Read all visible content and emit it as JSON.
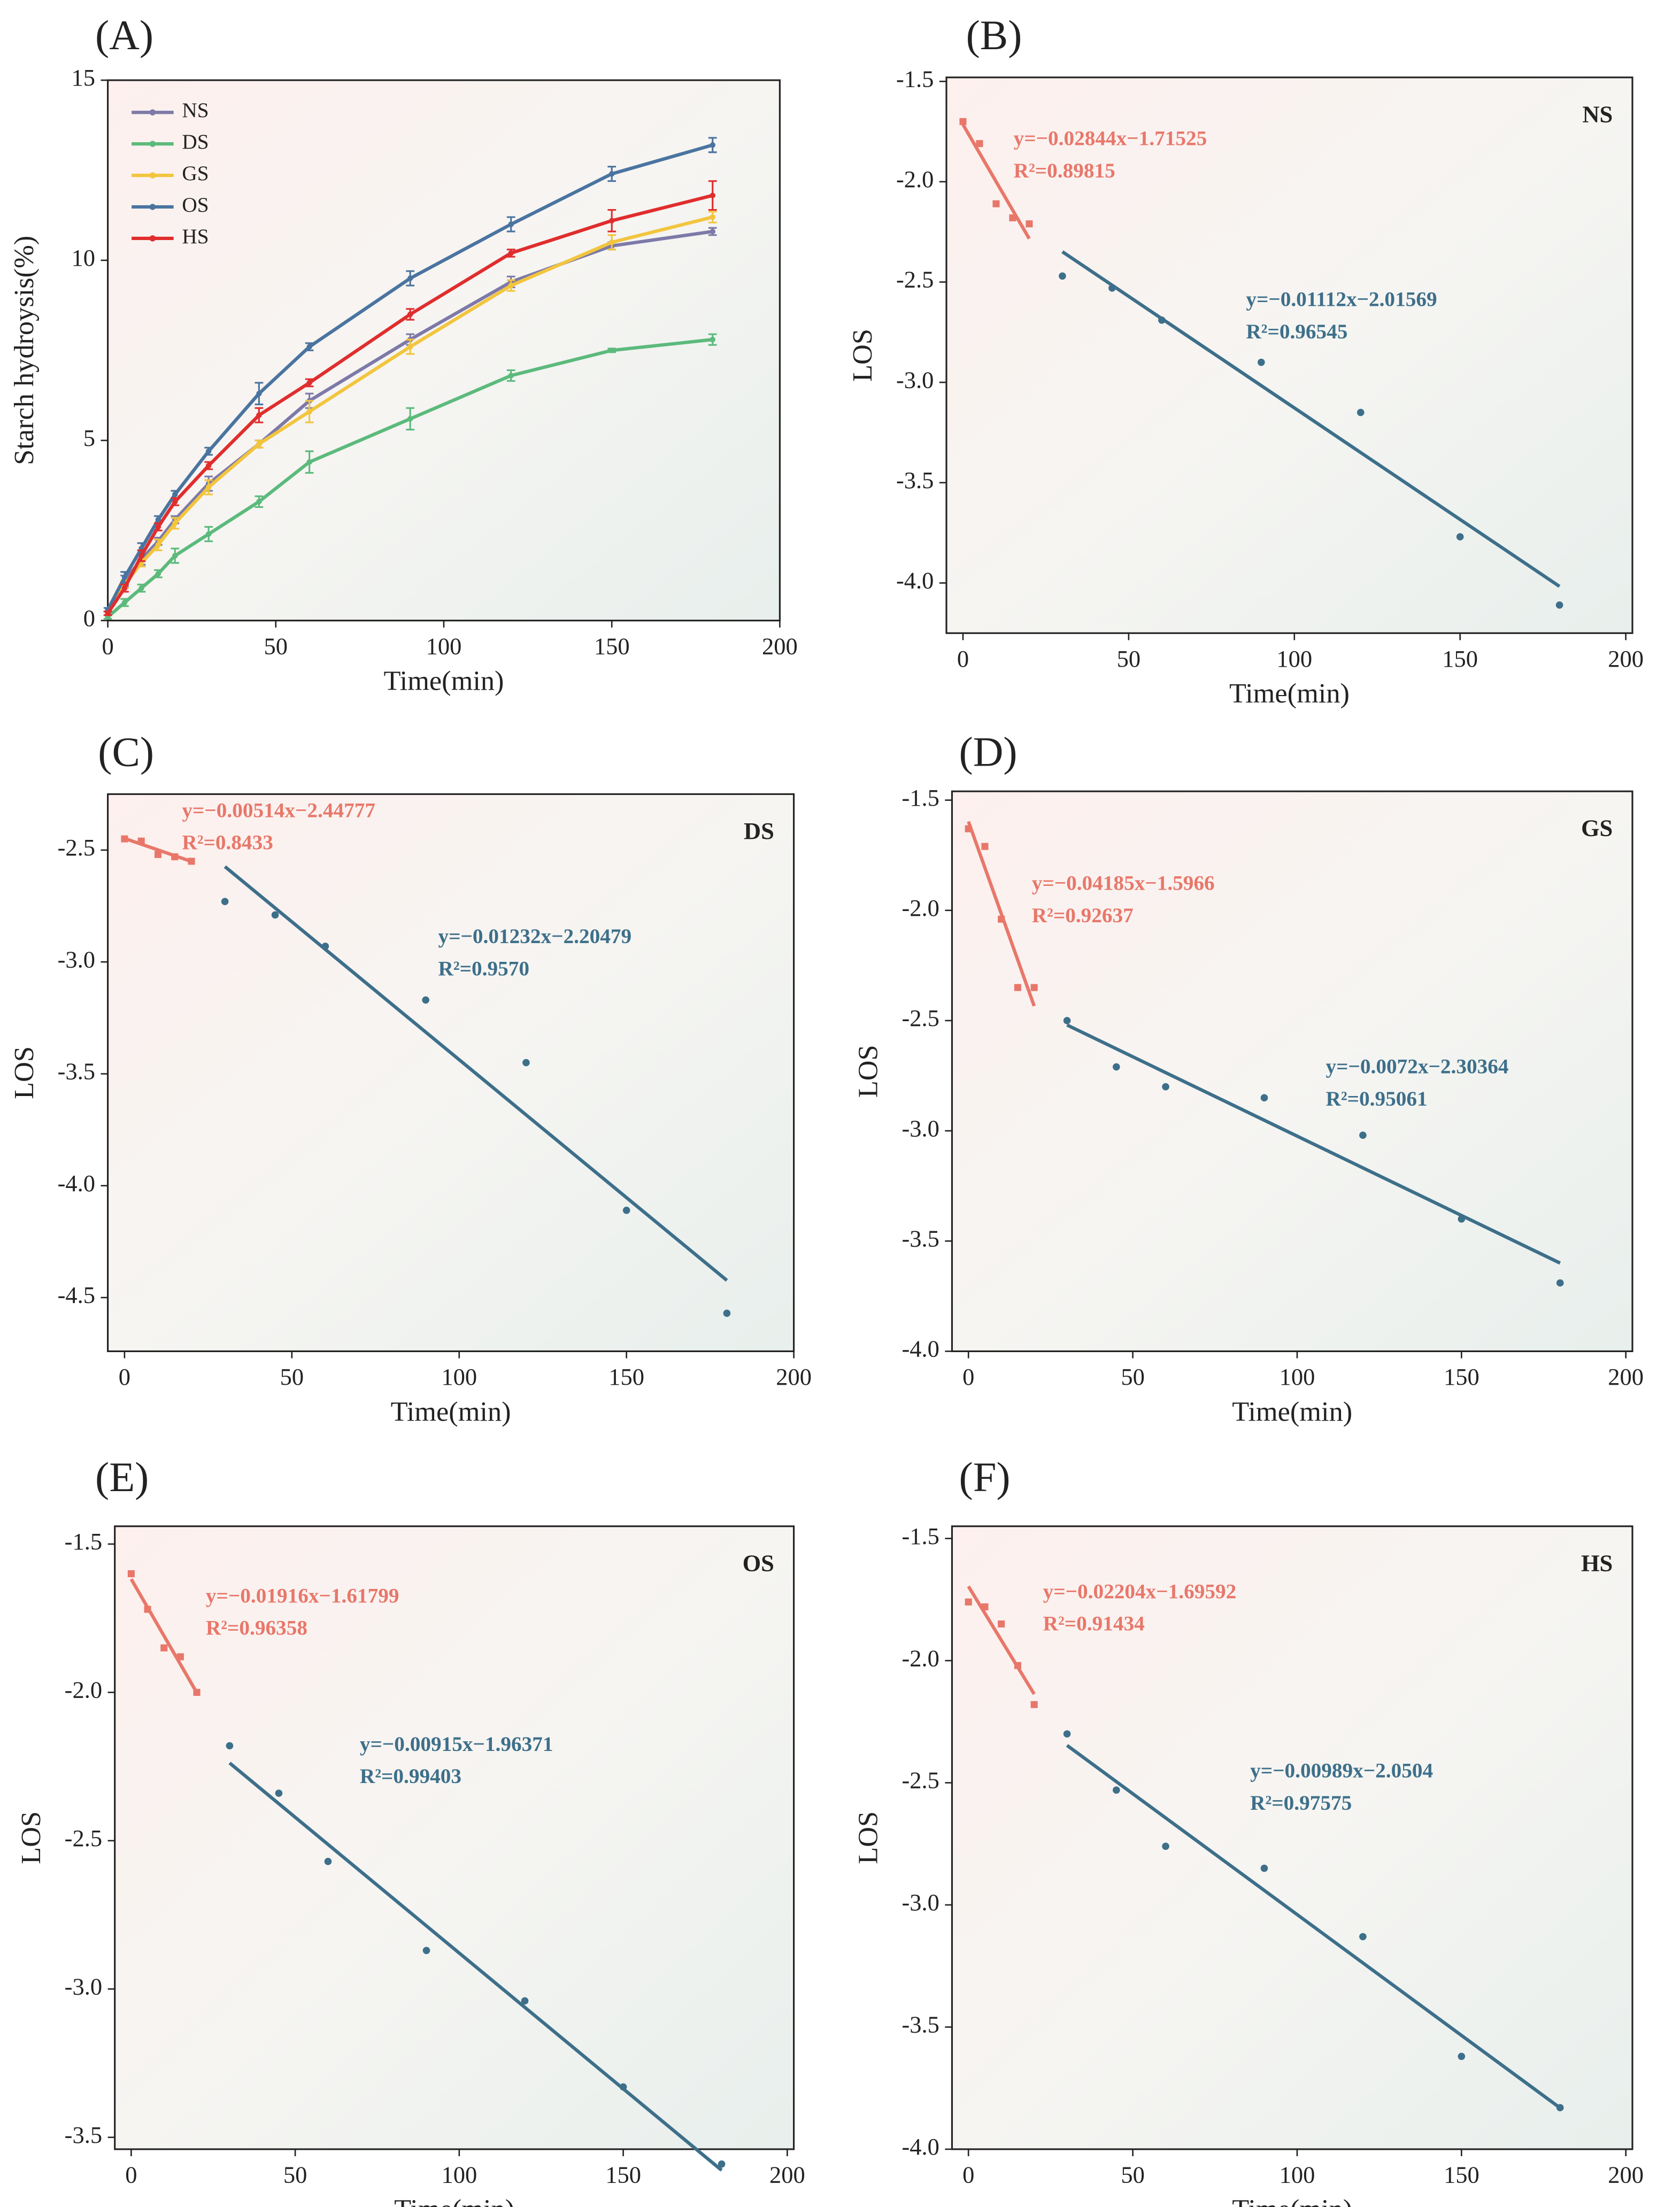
{
  "chart_data": [
    {
      "type": "line",
      "panel_label": "(A)",
      "xlabel": "Time(min)",
      "ylabel": "Starch hydroysis(%)",
      "x": [
        0,
        5,
        10,
        15,
        20,
        30,
        45,
        60,
        90,
        120,
        150,
        180
      ],
      "xlim": [
        0,
        200
      ],
      "xticks": [
        0,
        50,
        100,
        150,
        200
      ],
      "ylim": [
        0,
        15
      ],
      "yticks": [
        0,
        5,
        10,
        15
      ],
      "series": [
        {
          "name": "NS",
          "color": "#7d7aa8",
          "values": [
            0.2,
            1.1,
            1.7,
            2.2,
            2.8,
            3.8,
            4.9,
            6.1,
            7.8,
            9.4,
            10.4,
            10.8
          ],
          "errors": [
            0.05,
            0.15,
            0.15,
            0.1,
            0.1,
            0.2,
            0.1,
            0.2,
            0.15,
            0.15,
            0.1,
            0.1
          ]
        },
        {
          "name": "DS",
          "color": "#5cba7c",
          "values": [
            0.1,
            0.5,
            0.9,
            1.3,
            1.8,
            2.4,
            3.3,
            4.4,
            5.6,
            6.8,
            7.5,
            7.8
          ],
          "errors": [
            0.05,
            0.1,
            0.1,
            0.1,
            0.2,
            0.2,
            0.15,
            0.3,
            0.3,
            0.15,
            0.05,
            0.15
          ]
        },
        {
          "name": "GS",
          "color": "#f2c53d",
          "values": [
            0.2,
            1.0,
            1.6,
            2.1,
            2.7,
            3.7,
            4.9,
            5.8,
            7.6,
            9.3,
            10.5,
            11.2
          ],
          "errors": [
            0.05,
            0.1,
            0.1,
            0.15,
            0.15,
            0.2,
            0.1,
            0.3,
            0.2,
            0.15,
            0.2,
            0.15
          ]
        },
        {
          "name": "OS",
          "color": "#4a74a0",
          "values": [
            0.3,
            1.2,
            2.0,
            2.8,
            3.5,
            4.7,
            6.3,
            7.6,
            9.5,
            11.0,
            12.4,
            13.2
          ],
          "errors": [
            0.05,
            0.15,
            0.15,
            0.1,
            0.1,
            0.1,
            0.3,
            0.1,
            0.2,
            0.2,
            0.2,
            0.2
          ]
        },
        {
          "name": "HS",
          "color": "#e02d2d",
          "values": [
            0.2,
            0.9,
            1.8,
            2.6,
            3.3,
            4.3,
            5.7,
            6.6,
            8.5,
            10.2,
            11.1,
            11.8
          ],
          "errors": [
            0.05,
            0.1,
            0.15,
            0.1,
            0.1,
            0.1,
            0.2,
            0.1,
            0.15,
            0.1,
            0.3,
            0.4
          ]
        }
      ]
    },
    {
      "type": "scatter",
      "panel_label": "(B)",
      "sample": "NS",
      "xlabel": "Time(min)",
      "ylabel": "LOS",
      "xlim": [
        -5,
        202
      ],
      "xticks": [
        0,
        50,
        100,
        150,
        200
      ],
      "ylim": [
        -4.25,
        -1.48
      ],
      "yticks": [
        -1.5,
        {
          "value": -2,
          "label": "-2.0"
        },
        -2.5,
        {
          "value": -3,
          "label": "-3.0"
        },
        -3.5,
        {
          "value": -4,
          "label": "-4.0"
        }
      ],
      "series": [
        {
          "color": "#e8776a",
          "x": [
            0,
            5,
            10,
            15,
            20
          ],
          "values": [
            -1.7,
            -1.81,
            -2.11,
            -2.18,
            -2.21
          ],
          "fit": {
            "x": [
              0,
              20
            ],
            "values": [
              -1.715,
              -2.284
            ]
          },
          "equation": "y=−0.02844x−1.71525",
          "r2": "R²=0.89815"
        },
        {
          "color": "#3d6f8a",
          "x": [
            30,
            45,
            60,
            90,
            120,
            150,
            180
          ],
          "values": [
            -2.47,
            -2.53,
            -2.69,
            -2.9,
            -3.15,
            -3.77,
            -4.11
          ],
          "fit": {
            "x": [
              30,
              180
            ],
            "values": [
              -2.349,
              -4.017
            ]
          },
          "equation": "y=−0.01112x−2.01569",
          "r2": "R²=0.96545"
        }
      ]
    },
    {
      "type": "scatter",
      "panel_label": "(C)",
      "sample": "DS",
      "xlabel": "Time(min)",
      "ylabel": "LOS",
      "xlim": [
        -5,
        200
      ],
      "xticks": [
        0,
        50,
        100,
        150,
        200
      ],
      "ylim": [
        -4.74,
        -2.25
      ],
      "yticks": [
        -2.5,
        {
          "value": -3,
          "label": "-3.0"
        },
        -3.5,
        {
          "value": -4,
          "label": "-4.0"
        },
        -4.5
      ],
      "series": [
        {
          "color": "#e8776a",
          "x": [
            0,
            5,
            10,
            15,
            20
          ],
          "values": [
            -2.45,
            -2.46,
            -2.52,
            -2.53,
            -2.55
          ],
          "fit": {
            "x": [
              0,
              20
            ],
            "values": [
              -2.448,
              -2.551
            ]
          },
          "equation": "y=−0.00514x−2.44777",
          "r2": "R²=0.8433"
        },
        {
          "color": "#3d6f8a",
          "x": [
            30,
            45,
            60,
            90,
            120,
            150,
            180
          ],
          "values": [
            -2.73,
            -2.79,
            -2.93,
            -3.17,
            -3.45,
            -4.11,
            -4.57
          ],
          "fit": {
            "x": [
              30,
              180
            ],
            "values": [
              -2.574,
              -4.423
            ]
          },
          "equation": "y=−0.01232x−2.20479",
          "r2": "R²=0.9570"
        }
      ]
    },
    {
      "type": "scatter",
      "panel_label": "(D)",
      "sample": "GS",
      "xlabel": "Time(min)",
      "ylabel": "LOS",
      "xlim": [
        -5,
        202
      ],
      "xticks": [
        0,
        50,
        100,
        150,
        200
      ],
      "ylim": [
        -4.0,
        -1.46
      ],
      "yticks": [
        -1.5,
        {
          "value": -2,
          "label": "-2.0"
        },
        -2.5,
        {
          "value": -3,
          "label": "-3.0"
        },
        -3.5,
        {
          "value": -4,
          "label": "-4.0"
        }
      ],
      "series": [
        {
          "color": "#e8776a",
          "x": [
            0,
            5,
            10,
            15,
            20
          ],
          "values": [
            -1.63,
            -1.71,
            -2.04,
            -2.35,
            -2.35
          ],
          "fit": {
            "x": [
              0,
              20
            ],
            "values": [
              -1.597,
              -2.434
            ]
          },
          "equation": "y=−0.04185x−1.5966",
          "r2": "R²=0.92637"
        },
        {
          "color": "#3d6f8a",
          "x": [
            30,
            45,
            60,
            90,
            120,
            150,
            180
          ],
          "values": [
            -2.5,
            -2.71,
            -2.8,
            -2.85,
            -3.02,
            -3.4,
            -3.69
          ],
          "fit": {
            "x": [
              30,
              180
            ],
            "values": [
              -2.52,
              -3.6
            ]
          },
          "equation": "y=−0.0072x−2.30364",
          "r2": "R²=0.95061"
        }
      ]
    },
    {
      "type": "scatter",
      "panel_label": "(E)",
      "sample": "OS",
      "xlabel": "Time(min)",
      "ylabel": "LOS",
      "xlim": [
        -5,
        202
      ],
      "xticks": [
        0,
        50,
        100,
        150,
        200
      ],
      "ylim": [
        -3.54,
        -1.44
      ],
      "yticks": [
        -1.5,
        {
          "value": -2,
          "label": "-2.0"
        },
        -2.5,
        {
          "value": -3,
          "label": "-3.0"
        },
        -3.5
      ],
      "series": [
        {
          "color": "#e8776a",
          "x": [
            0,
            5,
            10,
            15,
            20
          ],
          "values": [
            -1.6,
            -1.72,
            -1.85,
            -1.88,
            -2.0
          ],
          "fit": {
            "x": [
              0,
              20
            ],
            "values": [
              -1.618,
              -2.001
            ]
          },
          "equation": "y=−0.01916x−1.61799",
          "r2": "R²=0.96358"
        },
        {
          "color": "#3d6f8a",
          "x": [
            30,
            45,
            60,
            90,
            120,
            150,
            180
          ],
          "values": [
            -2.18,
            -2.34,
            -2.57,
            -2.87,
            -3.04,
            -3.33,
            -3.59
          ],
          "fit": {
            "x": [
              30,
              180
            ],
            "values": [
              -2.238,
              -3.611
            ]
          },
          "equation": "y=−0.00915x−1.96371",
          "r2": "R²=0.99403"
        }
      ]
    },
    {
      "type": "scatter",
      "panel_label": "(F)",
      "sample": "HS",
      "xlabel": "Time(min)",
      "ylabel": "LOS",
      "xlim": [
        -5,
        202
      ],
      "xticks": [
        0,
        50,
        100,
        150,
        200
      ],
      "ylim": [
        -4.0,
        -1.45
      ],
      "yticks": [
        -1.5,
        {
          "value": -2,
          "label": "-2.0"
        },
        -2.5,
        {
          "value": -3,
          "label": "-3.0"
        },
        -3.5,
        {
          "value": -4,
          "label": "-4.0"
        }
      ],
      "series": [
        {
          "color": "#e8776a",
          "x": [
            0,
            5,
            10,
            15,
            20
          ],
          "values": [
            -1.76,
            -1.78,
            -1.85,
            -2.02,
            -2.18
          ],
          "fit": {
            "x": [
              0,
              20
            ],
            "values": [
              -1.696,
              -2.137
            ]
          },
          "equation": "y=−0.02204x−1.69592",
          "r2": "R²=0.91434"
        },
        {
          "color": "#3d6f8a",
          "x": [
            30,
            45,
            60,
            90,
            120,
            150,
            180
          ],
          "values": [
            -2.3,
            -2.53,
            -2.76,
            -2.85,
            -3.13,
            -3.62,
            -3.83
          ],
          "fit": {
            "x": [
              30,
              180
            ],
            "values": [
              -2.347,
              -3.831
            ]
          },
          "equation": "y=−0.00989x−2.0504",
          "r2": "R²=0.97575"
        }
      ]
    }
  ]
}
